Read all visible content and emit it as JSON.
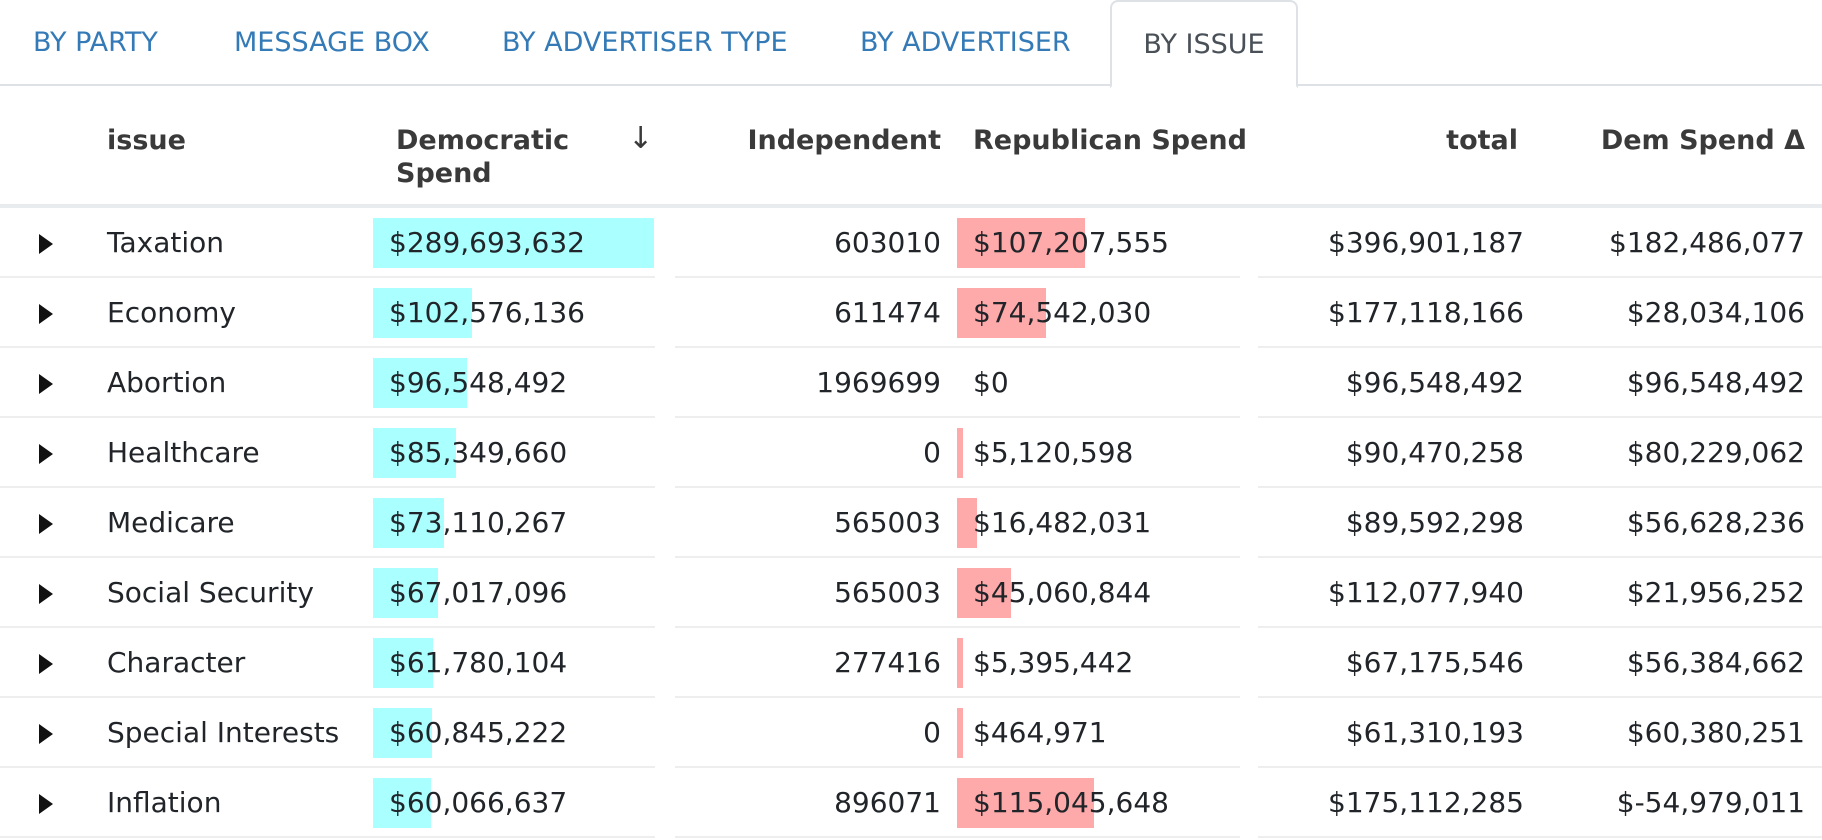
{
  "tabs": [
    {
      "label": "BY PARTY",
      "active": false
    },
    {
      "label": "MESSAGE BOX",
      "active": false
    },
    {
      "label": "BY ADVERTISER TYPE",
      "active": false
    },
    {
      "label": "BY ADVERTISER",
      "active": false
    },
    {
      "label": "BY ISSUE",
      "active": true
    }
  ],
  "table": {
    "headers": {
      "issue": "issue",
      "dem_line1": "Democratic",
      "dem_line2": "Spend",
      "independent": "Independent",
      "republican": "Republican Spend",
      "total": "total",
      "delta": "Dem Spend Δ"
    },
    "sort_icon": "arrow-down-icon",
    "colors": {
      "dem_bar": "#aaffff",
      "rep_bar": "#ffaaaa",
      "link": "#337ab7"
    },
    "max_dem": 289693632,
    "max_rep": 115045648,
    "rows": [
      {
        "issue": "Taxation",
        "dem": "$289,693,632",
        "dem_value": 289693632,
        "independent": "603010",
        "rep": "$107,207,555",
        "rep_value": 107207555,
        "total": "$396,901,187",
        "delta": "$182,486,077"
      },
      {
        "issue": "Economy",
        "dem": "$102,576,136",
        "dem_value": 102576136,
        "independent": "611474",
        "rep": "$74,542,030",
        "rep_value": 74542030,
        "total": "$177,118,166",
        "delta": "$28,034,106"
      },
      {
        "issue": "Abortion",
        "dem": "$96,548,492",
        "dem_value": 96548492,
        "independent": "1969699",
        "rep": "$0",
        "rep_value": 0,
        "total": "$96,548,492",
        "delta": "$96,548,492"
      },
      {
        "issue": "Healthcare",
        "dem": "$85,349,660",
        "dem_value": 85349660,
        "independent": "0",
        "rep": "$5,120,598",
        "rep_value": 5120598,
        "total": "$90,470,258",
        "delta": "$80,229,062"
      },
      {
        "issue": "Medicare",
        "dem": "$73,110,267",
        "dem_value": 73110267,
        "independent": "565003",
        "rep": "$16,482,031",
        "rep_value": 16482031,
        "total": "$89,592,298",
        "delta": "$56,628,236"
      },
      {
        "issue": "Social Security",
        "dem": "$67,017,096",
        "dem_value": 67017096,
        "independent": "565003",
        "rep": "$45,060,844",
        "rep_value": 45060844,
        "total": "$112,077,940",
        "delta": "$21,956,252"
      },
      {
        "issue": "Character",
        "dem": "$61,780,104",
        "dem_value": 61780104,
        "independent": "277416",
        "rep": "$5,395,442",
        "rep_value": 5395442,
        "total": "$67,175,546",
        "delta": "$56,384,662"
      },
      {
        "issue": "Special Interests",
        "dem": "$60,845,222",
        "dem_value": 60845222,
        "independent": "0",
        "rep": "$464,971",
        "rep_value": 464971,
        "total": "$61,310,193",
        "delta": "$60,380,251"
      },
      {
        "issue": "Inflation",
        "dem": "$60,066,637",
        "dem_value": 60066637,
        "independent": "896071",
        "rep": "$115,045,648",
        "rep_value": 115045648,
        "total": "$175,112,285",
        "delta": "$-54,979,011"
      }
    ]
  }
}
